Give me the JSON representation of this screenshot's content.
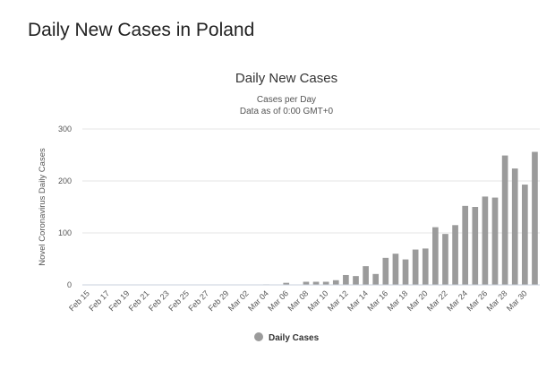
{
  "page": {
    "heading": "Daily New Cases in Poland"
  },
  "chart_data": {
    "type": "bar",
    "title": "Daily New Cases",
    "subtitle_lines": [
      "Cases per Day",
      "Data as of 0:00 GMT+0"
    ],
    "xlabel": "",
    "ylabel": "Novel Coronavirus Daily Cases",
    "ylim": [
      0,
      300
    ],
    "yticks": [
      0,
      100,
      200,
      300
    ],
    "grid": true,
    "legend_position": "bottom-center",
    "colors": {
      "bar": "#9b9b9b",
      "grid": "#e6e6e6",
      "axis": "#c8d1dc"
    },
    "categories": [
      "Feb 15",
      "Feb 16",
      "Feb 17",
      "Feb 18",
      "Feb 19",
      "Feb 20",
      "Feb 21",
      "Feb 22",
      "Feb 23",
      "Feb 24",
      "Feb 25",
      "Feb 26",
      "Feb 27",
      "Feb 28",
      "Feb 29",
      "Mar 01",
      "Mar 02",
      "Mar 03",
      "Mar 04",
      "Mar 05",
      "Mar 06",
      "Mar 07",
      "Mar 08",
      "Mar 09",
      "Mar 10",
      "Mar 11",
      "Mar 12",
      "Mar 13",
      "Mar 14",
      "Mar 15",
      "Mar 16",
      "Mar 17",
      "Mar 18",
      "Mar 19",
      "Mar 20",
      "Mar 21",
      "Mar 22",
      "Mar 23",
      "Mar 24",
      "Mar 25",
      "Mar 26",
      "Mar 27",
      "Mar 28",
      "Mar 29",
      "Mar 30",
      "Mar 31"
    ],
    "x_tick_labels": [
      "Feb 15",
      "Feb 17",
      "Feb 19",
      "Feb 21",
      "Feb 23",
      "Feb 25",
      "Feb 27",
      "Feb 29",
      "Mar 02",
      "Mar 04",
      "Mar 06",
      "Mar 08",
      "Mar 10",
      "Mar 12",
      "Mar 14",
      "Mar 16",
      "Mar 18",
      "Mar 20",
      "Mar 22",
      "Mar 24",
      "Mar 26",
      "Mar 28",
      "Mar 30"
    ],
    "series": [
      {
        "name": "Daily Cases",
        "values": [
          0,
          0,
          0,
          0,
          0,
          0,
          0,
          0,
          0,
          0,
          0,
          0,
          0,
          0,
          0,
          0,
          0,
          0,
          1,
          0,
          4,
          0,
          6,
          6,
          6,
          9,
          19,
          17,
          36,
          21,
          52,
          60,
          49,
          68,
          70,
          111,
          98,
          115,
          152,
          150,
          170,
          168,
          249,
          224,
          193,
          256
        ]
      }
    ]
  }
}
